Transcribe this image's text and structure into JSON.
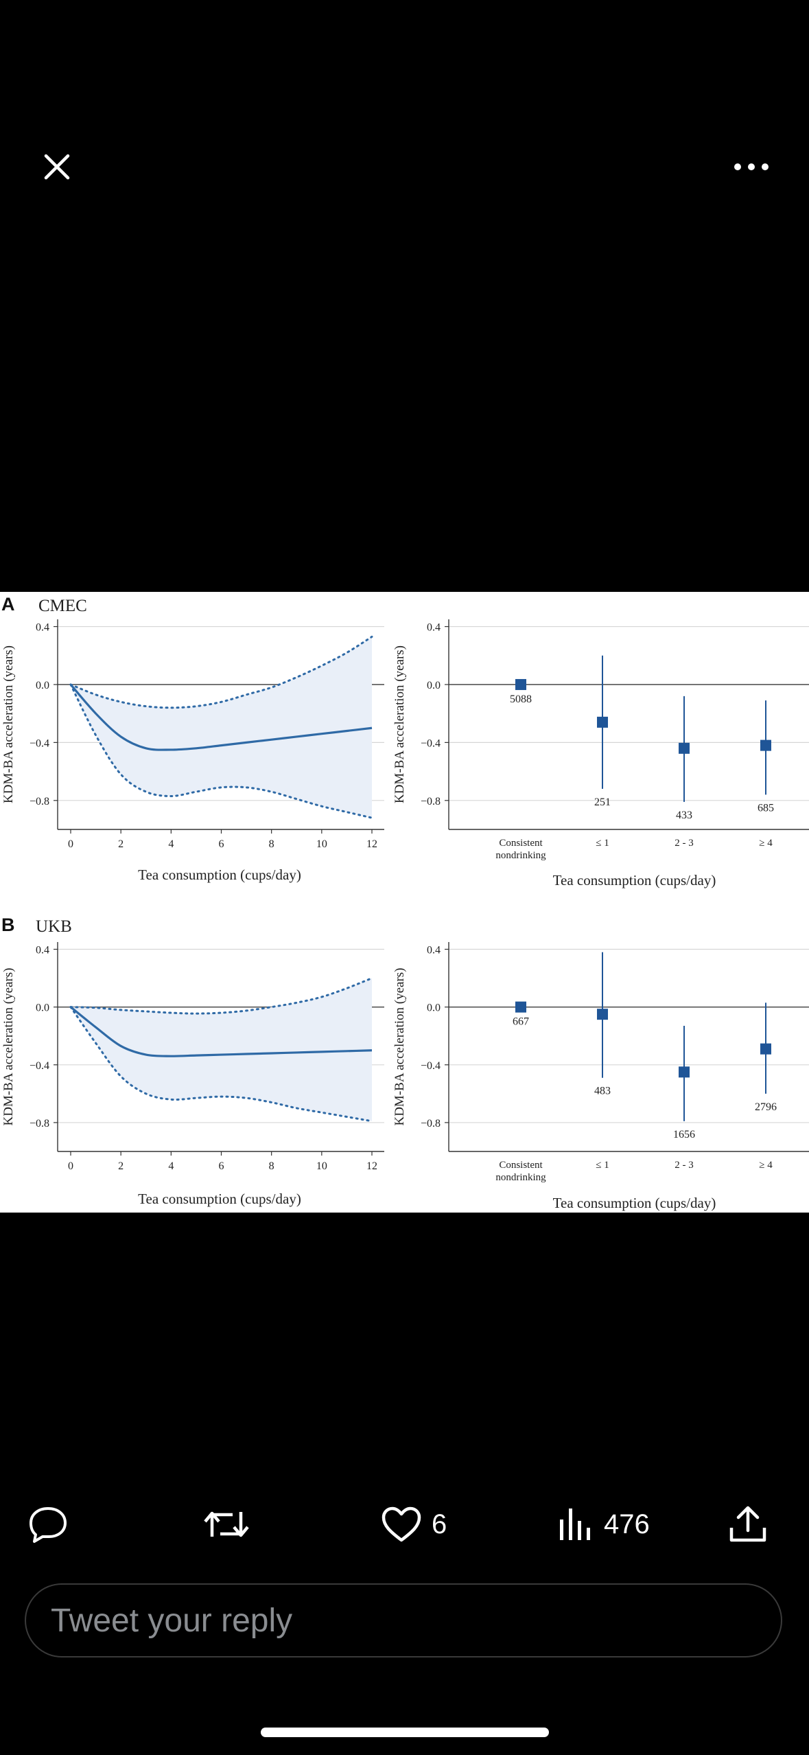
{
  "header": {
    "close_icon": "close-icon",
    "more_icon": "more-horizontal-icon"
  },
  "figure": {
    "panel_a": {
      "letter": "A",
      "cohort": "CMEC"
    },
    "panel_b": {
      "letter": "B",
      "cohort": "UKB"
    },
    "y_label": "KDM-BA acceleration (years)",
    "x_label": "Tea consumption (cups/day)",
    "y_ticks": [
      "0.4",
      "0.0",
      "−0.4",
      "−0.8"
    ],
    "x_ticks": [
      "0",
      "2",
      "4",
      "6",
      "8",
      "10",
      "12"
    ],
    "category_ticks": [
      "Consistent\nnondrinking",
      "≤ 1",
      "2 - 3",
      "≥ 4"
    ]
  },
  "chart_data": [
    {
      "type": "line",
      "panel": "A",
      "title": "CMEC",
      "xlabel": "Tea consumption (cups/day)",
      "ylabel": "KDM-BA acceleration (years)",
      "xlim": [
        0,
        12
      ],
      "ylim": [
        -1.0,
        0.45
      ],
      "x": [
        0,
        1,
        2,
        3,
        4,
        5,
        6,
        7,
        8,
        9,
        10,
        11,
        12
      ],
      "series": [
        {
          "role": "estimate",
          "values": [
            0.0,
            -0.2,
            -0.36,
            -0.44,
            -0.45,
            -0.44,
            -0.42,
            -0.4,
            -0.38,
            -0.36,
            -0.34,
            -0.32,
            -0.3
          ]
        },
        {
          "role": "upper",
          "values": [
            0.0,
            -0.07,
            -0.12,
            -0.15,
            -0.16,
            -0.15,
            -0.12,
            -0.07,
            -0.02,
            0.05,
            0.13,
            0.22,
            0.33
          ]
        },
        {
          "role": "lower",
          "values": [
            0.0,
            -0.35,
            -0.62,
            -0.74,
            -0.77,
            -0.74,
            -0.71,
            -0.71,
            -0.74,
            -0.79,
            -0.84,
            -0.88,
            -0.92
          ]
        }
      ],
      "grid": true
    },
    {
      "type": "scatter",
      "panel": "A",
      "xlabel": "Tea consumption (cups/day)",
      "ylabel": "KDM-BA acceleration (years)",
      "ylim": [
        -1.0,
        0.45
      ],
      "categories": [
        "Consistent nondrinking",
        "≤ 1",
        "2 - 3",
        "≥ 4"
      ],
      "values": [
        0.0,
        -0.26,
        -0.44,
        -0.42
      ],
      "ci_low": [
        0.0,
        -0.72,
        -0.81,
        -0.76
      ],
      "ci_high": [
        0.0,
        0.2,
        -0.08,
        -0.11
      ],
      "labels": [
        "5088",
        "251",
        "433",
        "685"
      ],
      "grid": true
    },
    {
      "type": "line",
      "panel": "B",
      "title": "UKB",
      "xlabel": "Tea consumption (cups/day)",
      "ylabel": "KDM-BA acceleration (years)",
      "xlim": [
        0,
        12
      ],
      "ylim": [
        -1.0,
        0.45
      ],
      "x": [
        0,
        1,
        2,
        3,
        4,
        5,
        6,
        7,
        8,
        9,
        10,
        11,
        12
      ],
      "series": [
        {
          "role": "estimate",
          "values": [
            0.0,
            -0.14,
            -0.27,
            -0.33,
            -0.34,
            -0.335,
            -0.33,
            -0.325,
            -0.32,
            -0.315,
            -0.31,
            -0.305,
            -0.3
          ]
        },
        {
          "role": "upper",
          "values": [
            0.0,
            -0.005,
            -0.02,
            -0.03,
            -0.04,
            -0.045,
            -0.04,
            -0.025,
            0.0,
            0.03,
            0.07,
            0.13,
            0.2
          ]
        },
        {
          "role": "lower",
          "values": [
            0.0,
            -0.25,
            -0.48,
            -0.6,
            -0.64,
            -0.63,
            -0.62,
            -0.63,
            -0.66,
            -0.7,
            -0.73,
            -0.76,
            -0.79
          ]
        }
      ],
      "grid": true
    },
    {
      "type": "scatter",
      "panel": "B",
      "xlabel": "Tea consumption (cups/day)",
      "ylabel": "KDM-BA acceleration (years)",
      "ylim": [
        -1.0,
        0.45
      ],
      "categories": [
        "Consistent nondrinking",
        "≤ 1",
        "2 - 3",
        "≥ 4"
      ],
      "values": [
        0.0,
        -0.05,
        -0.45,
        -0.29
      ],
      "ci_low": [
        0.0,
        -0.49,
        -0.79,
        -0.6
      ],
      "ci_high": [
        0.0,
        0.38,
        -0.13,
        0.03
      ],
      "labels": [
        "667",
        "483",
        "1656",
        "2796"
      ],
      "grid": true
    }
  ],
  "actions": {
    "reply_icon": "reply-icon",
    "retweet_icon": "retweet-icon",
    "like_icon": "heart-icon",
    "like_count": "6",
    "views_icon": "views-chart-icon",
    "views_count": "476",
    "share_icon": "share-icon"
  },
  "reply_box": {
    "placeholder": "Tweet your reply"
  },
  "colors": {
    "line": "#2f6aa6",
    "band": "#e9eff8",
    "marker": "#1f5597",
    "grid": "#d6d6d6"
  }
}
